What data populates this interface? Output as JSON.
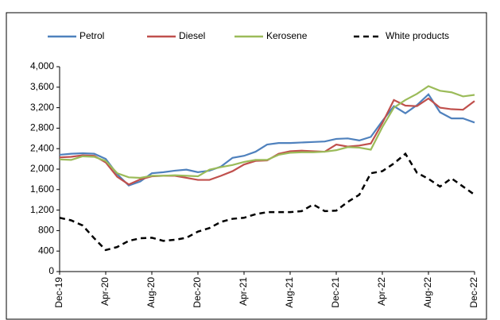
{
  "chart_data": {
    "type": "line",
    "categories": [
      "Dec-19",
      null,
      null,
      null,
      "Apr-20",
      null,
      null,
      null,
      "Aug-20",
      null,
      null,
      null,
      "Dec-20",
      null,
      null,
      null,
      "Apr-21",
      null,
      null,
      null,
      "Aug-21",
      null,
      null,
      null,
      "Dec-21",
      null,
      null,
      null,
      "Apr-22",
      null,
      null,
      null,
      "Aug-22",
      null,
      null,
      null,
      "Dec-22"
    ],
    "series": [
      {
        "name": "Petrol",
        "color": "#4f81bd",
        "dash": false,
        "values": [
          2280,
          2300,
          2310,
          2300,
          2200,
          1900,
          1680,
          1760,
          1920,
          1940,
          1970,
          1990,
          1940,
          1970,
          2050,
          2220,
          2260,
          2340,
          2480,
          2510,
          2510,
          2520,
          2530,
          2540,
          2590,
          2600,
          2560,
          2630,
          2940,
          3230,
          3090,
          3250,
          3460,
          3110,
          2990,
          2990,
          2910
        ]
      },
      {
        "name": "Diesel",
        "color": "#c0504d",
        "dash": false,
        "values": [
          2230,
          2240,
          2270,
          2260,
          2130,
          1850,
          1700,
          1800,
          1860,
          1870,
          1870,
          1830,
          1790,
          1790,
          1870,
          1960,
          2090,
          2160,
          2170,
          2300,
          2350,
          2360,
          2350,
          2340,
          2480,
          2440,
          2460,
          2500,
          2900,
          3350,
          3240,
          3230,
          3380,
          3200,
          3170,
          3160,
          3330
        ]
      },
      {
        "name": "Kerosene",
        "color": "#9bbb59",
        "dash": false,
        "values": [
          2190,
          2180,
          2250,
          2240,
          2160,
          1920,
          1840,
          1830,
          1870,
          1870,
          1880,
          1870,
          1860,
          1990,
          2040,
          2080,
          2140,
          2180,
          2180,
          2280,
          2320,
          2330,
          2330,
          2340,
          2370,
          2430,
          2420,
          2380,
          2820,
          3200,
          3350,
          3470,
          3620,
          3530,
          3500,
          3420,
          3450
        ]
      },
      {
        "name": "White products",
        "color": "#000000",
        "dash": true,
        "values": [
          1050,
          1000,
          900,
          650,
          420,
          480,
          600,
          650,
          660,
          600,
          620,
          660,
          780,
          850,
          970,
          1030,
          1050,
          1120,
          1160,
          1160,
          1160,
          1180,
          1310,
          1180,
          1190,
          1360,
          1500,
          1920,
          1960,
          2110,
          2300,
          1930,
          1810,
          1660,
          1820,
          1660,
          1500
        ]
      }
    ],
    "ylim": [
      0,
      4000
    ],
    "yticks": [
      0,
      400,
      800,
      {
        "value": 1200,
        "label": "1,200"
      },
      {
        "value": 1600,
        "label": "1,600"
      },
      {
        "value": 2000,
        "label": "2,000"
      },
      {
        "value": 2400,
        "label": "2,400"
      },
      {
        "value": 2800,
        "label": "2,800"
      },
      {
        "value": 3200,
        "label": "3,200"
      },
      {
        "value": 3600,
        "label": "3,600"
      },
      {
        "value": 4000,
        "label": "4,000"
      }
    ],
    "grid": false,
    "legend": "top"
  }
}
